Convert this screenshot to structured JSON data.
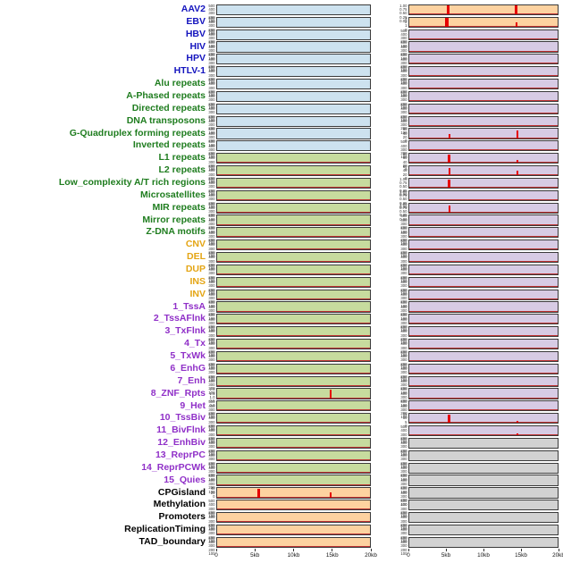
{
  "figure": {
    "x_ticks": [
      "0",
      "5kb",
      "10kb",
      "15kb",
      "20kb"
    ],
    "default_yticks": [
      "500",
      "400",
      "300",
      "200",
      "100"
    ],
    "baseline_panels": [
      "green",
      "purple",
      "orange"
    ],
    "colors": {
      "label_virus": "#1414be",
      "label_repeat": "#1f7d1f",
      "label_sv": "#e4a514",
      "label_chrom": "#9030c8",
      "label_anno": "#000000",
      "panel_blue": "#cde2ef",
      "panel_green": "#c7db9e",
      "panel_purple": "#d7cbe4",
      "panel_orange": "#fdd2a0",
      "panel_gray": "#d2d2d2",
      "spike": "#e60000",
      "baseline": "#c03434"
    }
  },
  "chart_data": {
    "type": "line",
    "x_ticks": [
      "0",
      "5kb",
      "10kb",
      "15kb",
      "20kb"
    ],
    "x_range_kb": [
      0,
      20
    ],
    "rows": [
      {
        "label": "AAV2",
        "group": "virus",
        "left": {
          "bg": "blue"
        },
        "right": {
          "bg": "orange",
          "yticks": [
            "1.00",
            "0.75",
            "0.50",
            "0.25",
            "0.00"
          ],
          "spikes": [
            {
              "x": 0.26,
              "h": 1.0,
              "w": 3
            },
            {
              "x": 0.72,
              "h": 1.0,
              "w": 3
            }
          ]
        }
      },
      {
        "label": "EBV",
        "group": "virus",
        "left": {
          "bg": "blue"
        },
        "right": {
          "bg": "orange",
          "yticks": [
            "3",
            "2",
            "1",
            "0"
          ],
          "spikes": [
            {
              "x": 0.25,
              "h": 1.0,
              "w": 4
            },
            {
              "x": 0.72,
              "h": 0.45,
              "w": 2
            }
          ]
        }
      },
      {
        "label": "HBV",
        "group": "virus",
        "left": {
          "bg": "blue"
        },
        "right": {
          "bg": "purple"
        }
      },
      {
        "label": "HIV",
        "group": "virus",
        "left": {
          "bg": "blue"
        },
        "right": {
          "bg": "purple"
        }
      },
      {
        "label": "HPV",
        "group": "virus",
        "left": {
          "bg": "blue"
        },
        "right": {
          "bg": "purple"
        }
      },
      {
        "label": "HTLV-1",
        "group": "virus",
        "left": {
          "bg": "blue"
        },
        "right": {
          "bg": "purple"
        }
      },
      {
        "label": "Alu repeats",
        "group": "repeat",
        "left": {
          "bg": "blue"
        },
        "right": {
          "bg": "purple"
        }
      },
      {
        "label": "A-Phased repeats",
        "group": "repeat",
        "left": {
          "bg": "blue"
        },
        "right": {
          "bg": "purple"
        }
      },
      {
        "label": "Directed repeats",
        "group": "repeat",
        "left": {
          "bg": "blue"
        },
        "right": {
          "bg": "purple"
        }
      },
      {
        "label": "DNA transposons",
        "group": "repeat",
        "left": {
          "bg": "blue"
        },
        "right": {
          "bg": "purple"
        }
      },
      {
        "label": "G-Quadruplex forming repeats",
        "group": "repeat",
        "left": {
          "bg": "blue"
        },
        "right": {
          "bg": "purple",
          "yticks": [
            "60",
            "40",
            "20",
            "0"
          ],
          "spikes": [
            {
              "x": 0.27,
              "h": 0.45,
              "w": 2
            },
            {
              "x": 0.73,
              "h": 0.85,
              "w": 2
            }
          ]
        }
      },
      {
        "label": "Inverted repeats",
        "group": "repeat",
        "left": {
          "bg": "blue"
        },
        "right": {
          "bg": "purple"
        }
      },
      {
        "label": "L1 repeats",
        "group": "repeat",
        "left": {
          "bg": "green"
        },
        "right": {
          "bg": "purple",
          "yticks": [
            "80",
            "60",
            "40",
            "20",
            "0"
          ],
          "spikes": [
            {
              "x": 0.27,
              "h": 0.9,
              "w": 3
            },
            {
              "x": 0.73,
              "h": 0.35,
              "w": 2
            }
          ]
        }
      },
      {
        "label": "L2 repeats",
        "group": "repeat",
        "left": {
          "bg": "green"
        },
        "right": {
          "bg": "purple",
          "yticks": [
            "60",
            "40",
            "20",
            "0"
          ],
          "spikes": [
            {
              "x": 0.27,
              "h": 0.85,
              "w": 2
            },
            {
              "x": 0.73,
              "h": 0.55,
              "w": 2
            }
          ]
        }
      },
      {
        "label": "Low_complexity A/T rich regions",
        "group": "repeat",
        "left": {
          "bg": "green"
        },
        "right": {
          "bg": "purple",
          "yticks": [
            "1.00",
            "0.75",
            "0.50",
            "0.25",
            "0.00"
          ],
          "spikes": [
            {
              "x": 0.27,
              "h": 0.9,
              "w": 3
            }
          ]
        }
      },
      {
        "label": "Microsatellites",
        "group": "repeat",
        "left": {
          "bg": "green"
        },
        "right": {
          "bg": "purple",
          "yticks": [
            "1.00",
            "0.75",
            "0.50",
            "0.25",
            "0.00"
          ]
        }
      },
      {
        "label": "MIR repeats",
        "group": "repeat",
        "left": {
          "bg": "green"
        },
        "right": {
          "bg": "purple",
          "yticks": [
            "1.00",
            "0.75",
            "0.50",
            "0.25",
            "0.00"
          ],
          "spikes": [
            {
              "x": 0.27,
              "h": 0.8,
              "w": 2
            }
          ]
        }
      },
      {
        "label": "Mirror repeats",
        "group": "repeat",
        "left": {
          "bg": "green"
        },
        "right": {
          "bg": "purple"
        }
      },
      {
        "label": "Z-DNA motifs",
        "group": "repeat",
        "left": {
          "bg": "green"
        },
        "right": {
          "bg": "purple"
        }
      },
      {
        "label": "CNV",
        "group": "sv",
        "left": {
          "bg": "green"
        },
        "right": {
          "bg": "purple"
        }
      },
      {
        "label": "DEL",
        "group": "sv",
        "left": {
          "bg": "green"
        },
        "right": {
          "bg": "purple"
        }
      },
      {
        "label": "DUP",
        "group": "sv",
        "left": {
          "bg": "green"
        },
        "right": {
          "bg": "purple"
        }
      },
      {
        "label": "INS",
        "group": "sv",
        "left": {
          "bg": "green"
        },
        "right": {
          "bg": "purple"
        }
      },
      {
        "label": "INV",
        "group": "sv",
        "left": {
          "bg": "green"
        },
        "right": {
          "bg": "purple"
        }
      },
      {
        "label": "1_TssA",
        "group": "chrom",
        "left": {
          "bg": "green"
        },
        "right": {
          "bg": "purple"
        }
      },
      {
        "label": "2_TssAFlnk",
        "group": "chrom",
        "left": {
          "bg": "green"
        },
        "right": {
          "bg": "purple"
        }
      },
      {
        "label": "3_TxFlnk",
        "group": "chrom",
        "left": {
          "bg": "green"
        },
        "right": {
          "bg": "purple"
        }
      },
      {
        "label": "4_Tx",
        "group": "chrom",
        "left": {
          "bg": "green"
        },
        "right": {
          "bg": "purple"
        }
      },
      {
        "label": "5_TxWk",
        "group": "chrom",
        "left": {
          "bg": "green"
        },
        "right": {
          "bg": "purple"
        }
      },
      {
        "label": "6_EnhG",
        "group": "chrom",
        "left": {
          "bg": "green"
        },
        "right": {
          "bg": "purple"
        }
      },
      {
        "label": "7_Enh",
        "group": "chrom",
        "left": {
          "bg": "green"
        },
        "right": {
          "bg": "purple"
        }
      },
      {
        "label": "8_ZNF_Rpts",
        "group": "chrom",
        "left": {
          "bg": "green",
          "yticks": [
            "2.0",
            "1.5",
            "1.0",
            "0.5",
            "0.0"
          ],
          "spikes": [
            {
              "x": 0.74,
              "h": 0.95,
              "w": 2
            }
          ]
        },
        "right": {
          "bg": "purple"
        }
      },
      {
        "label": "9_Het",
        "group": "chrom",
        "left": {
          "bg": "green"
        },
        "right": {
          "bg": "purple"
        }
      },
      {
        "label": "10_TssBiv",
        "group": "chrom",
        "left": {
          "bg": "green"
        },
        "right": {
          "bg": "purple",
          "yticks": [
            "15",
            "10",
            "5",
            "0"
          ],
          "spikes": [
            {
              "x": 0.27,
              "h": 0.95,
              "w": 3
            },
            {
              "x": 0.73,
              "h": 0.25,
              "w": 2
            }
          ]
        }
      },
      {
        "label": "11_BivFlnk",
        "group": "chrom",
        "left": {
          "bg": "green"
        },
        "right": {
          "bg": "purple",
          "spikes": [
            {
              "x": 0.73,
              "h": 0.22,
              "w": 2
            }
          ]
        }
      },
      {
        "label": "12_EnhBiv",
        "group": "chrom",
        "left": {
          "bg": "green"
        },
        "right": {
          "bg": "gray"
        }
      },
      {
        "label": "13_ReprPC",
        "group": "chrom",
        "left": {
          "bg": "green"
        },
        "right": {
          "bg": "gray"
        }
      },
      {
        "label": "14_ReprPCWk",
        "group": "chrom",
        "left": {
          "bg": "green"
        },
        "right": {
          "bg": "gray"
        }
      },
      {
        "label": "15_Quies",
        "group": "chrom",
        "left": {
          "bg": "green"
        },
        "right": {
          "bg": "gray"
        }
      },
      {
        "label": "CPGisland",
        "group": "anno",
        "left": {
          "bg": "orange",
          "yticks": [
            "40",
            "20",
            "0"
          ],
          "spikes": [
            {
              "x": 0.27,
              "h": 0.95,
              "w": 3
            },
            {
              "x": 0.74,
              "h": 0.55,
              "w": 2
            }
          ]
        },
        "right": {
          "bg": "gray"
        }
      },
      {
        "label": "Methylation",
        "group": "anno",
        "left": {
          "bg": "orange"
        },
        "right": {
          "bg": "gray"
        }
      },
      {
        "label": "Promoters",
        "group": "anno",
        "left": {
          "bg": "orange"
        },
        "right": {
          "bg": "gray"
        }
      },
      {
        "label": "ReplicationTiming",
        "group": "anno",
        "left": {
          "bg": "orange"
        },
        "right": {
          "bg": "gray"
        }
      },
      {
        "label": "TAD_boundary",
        "group": "anno",
        "left": {
          "bg": "orange"
        },
        "right": {
          "bg": "gray"
        }
      }
    ]
  }
}
